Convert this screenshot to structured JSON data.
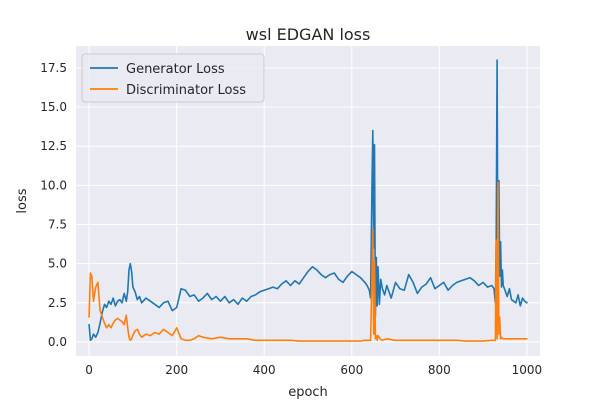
{
  "chart_data": {
    "type": "line",
    "title": "wsl EDGAN loss",
    "xlabel": "epoch",
    "ylabel": "loss",
    "xlim": [
      -30,
      1030
    ],
    "ylim": [
      -0.9,
      18.9
    ],
    "xticks": [
      0,
      200,
      400,
      600,
      800,
      1000
    ],
    "xtick_labels": [
      "0",
      "200",
      "400",
      "600",
      "800",
      "1000"
    ],
    "yticks": [
      0.0,
      2.5,
      5.0,
      7.5,
      10.0,
      12.5,
      15.0,
      17.5
    ],
    "ytick_labels": [
      "0.0",
      "2.5",
      "5.0",
      "7.5",
      "10.0",
      "12.5",
      "15.0",
      "17.5"
    ],
    "grid": true,
    "legend_position": "upper-left",
    "series": [
      {
        "name": "Generator Loss",
        "color": "#1f77b4",
        "x": [
          0,
          3,
          6,
          10,
          15,
          20,
          25,
          30,
          35,
          40,
          45,
          50,
          55,
          60,
          65,
          70,
          75,
          80,
          85,
          88,
          91,
          94,
          97,
          100,
          105,
          110,
          115,
          120,
          130,
          140,
          150,
          160,
          170,
          180,
          190,
          200,
          210,
          220,
          230,
          240,
          250,
          260,
          270,
          280,
          290,
          300,
          310,
          320,
          330,
          340,
          350,
          360,
          370,
          380,
          390,
          400,
          410,
          420,
          430,
          440,
          450,
          460,
          470,
          480,
          490,
          500,
          510,
          520,
          530,
          540,
          550,
          560,
          570,
          580,
          590,
          600,
          610,
          620,
          630,
          635,
          640,
          643,
          646,
          648,
          650,
          652,
          654,
          656,
          658,
          660,
          663,
          666,
          670,
          675,
          680,
          690,
          700,
          710,
          720,
          730,
          740,
          750,
          760,
          770,
          780,
          790,
          800,
          810,
          820,
          830,
          840,
          850,
          860,
          870,
          880,
          890,
          900,
          910,
          920,
          925,
          928,
          930,
          932,
          934,
          936,
          938,
          940,
          942,
          944,
          946,
          950,
          955,
          960,
          965,
          970,
          975,
          980,
          985,
          990,
          995,
          1000
        ],
        "values": [
          1.1,
          0.1,
          0.2,
          0.5,
          0.3,
          0.6,
          1.2,
          1.9,
          2.4,
          2.2,
          2.6,
          2.4,
          2.8,
          2.3,
          2.6,
          2.7,
          2.5,
          3.1,
          2.6,
          3.2,
          4.6,
          5.0,
          4.5,
          3.5,
          3.2,
          2.7,
          2.9,
          2.5,
          2.8,
          2.6,
          2.4,
          2.2,
          2.5,
          2.6,
          2.0,
          2.2,
          3.4,
          3.3,
          2.9,
          3.0,
          2.6,
          2.8,
          3.1,
          2.7,
          2.9,
          2.6,
          2.9,
          2.5,
          2.7,
          2.4,
          2.8,
          2.6,
          2.9,
          3.0,
          3.2,
          3.3,
          3.4,
          3.5,
          3.4,
          3.7,
          3.9,
          3.6,
          3.9,
          3.7,
          4.1,
          4.5,
          4.8,
          4.6,
          4.3,
          4.1,
          4.3,
          4.4,
          4.0,
          3.8,
          4.2,
          4.5,
          4.3,
          4.1,
          3.8,
          3.6,
          3.3,
          2.8,
          9.6,
          13.5,
          6.0,
          12.6,
          1.6,
          5.4,
          2.3,
          4.8,
          2.4,
          4.0,
          3.4,
          3.0,
          3.6,
          2.8,
          3.8,
          3.4,
          3.3,
          4.3,
          3.8,
          3.1,
          3.5,
          3.7,
          4.1,
          3.4,
          3.6,
          3.8,
          3.3,
          3.6,
          3.8,
          3.9,
          4.0,
          4.1,
          3.9,
          3.6,
          3.8,
          3.5,
          3.6,
          3.4,
          2.5,
          6.5,
          18.0,
          2.4,
          10.3,
          4.2,
          6.4,
          3.5,
          4.6,
          3.6,
          3.3,
          2.9,
          3.4,
          2.7,
          2.6,
          2.5,
          3.0,
          2.3,
          2.8,
          2.6,
          2.5
        ]
      },
      {
        "name": "Discriminator Loss",
        "color": "#ff7f0e",
        "x": [
          0,
          3,
          6,
          10,
          15,
          20,
          25,
          30,
          35,
          40,
          45,
          50,
          55,
          60,
          65,
          70,
          75,
          80,
          85,
          88,
          91,
          94,
          97,
          100,
          105,
          110,
          115,
          120,
          130,
          140,
          150,
          160,
          170,
          180,
          190,
          200,
          210,
          220,
          230,
          240,
          250,
          260,
          280,
          300,
          320,
          340,
          360,
          380,
          400,
          420,
          440,
          460,
          480,
          500,
          520,
          540,
          560,
          580,
          600,
          620,
          630,
          640,
          643,
          646,
          648,
          650,
          652,
          654,
          656,
          658,
          660,
          665,
          670,
          680,
          700,
          720,
          740,
          760,
          780,
          800,
          820,
          840,
          860,
          880,
          900,
          920,
          925,
          928,
          930,
          932,
          934,
          936,
          938,
          940,
          942,
          945,
          950,
          960,
          970,
          980,
          990,
          1000
        ],
        "values": [
          1.6,
          4.4,
          4.2,
          2.6,
          3.5,
          3.8,
          2.0,
          1.6,
          1.2,
          0.9,
          1.1,
          0.9,
          1.2,
          1.4,
          1.5,
          1.4,
          1.3,
          1.1,
          1.7,
          0.9,
          0.3,
          0.1,
          0.2,
          0.4,
          0.7,
          0.8,
          0.5,
          0.3,
          0.5,
          0.4,
          0.6,
          0.5,
          0.8,
          0.6,
          0.4,
          0.9,
          0.2,
          0.1,
          0.1,
          0.2,
          0.4,
          0.3,
          0.2,
          0.3,
          0.2,
          0.2,
          0.2,
          0.1,
          0.1,
          0.1,
          0.1,
          0.1,
          0.05,
          0.05,
          0.05,
          0.05,
          0.05,
          0.05,
          0.05,
          0.05,
          0.1,
          0.1,
          0.1,
          4.0,
          7.2,
          0.5,
          5.2,
          0.2,
          0.4,
          0.1,
          0.4,
          0.2,
          0.1,
          0.2,
          0.1,
          0.1,
          0.1,
          0.1,
          0.1,
          0.1,
          0.1,
          0.1,
          0.05,
          0.05,
          0.05,
          0.1,
          0.1,
          0.1,
          6.5,
          0.2,
          10.2,
          0.5,
          1.6,
          0.2,
          0.3,
          0.2,
          0.2,
          0.2,
          0.2,
          0.2,
          0.2,
          0.2
        ]
      }
    ]
  }
}
